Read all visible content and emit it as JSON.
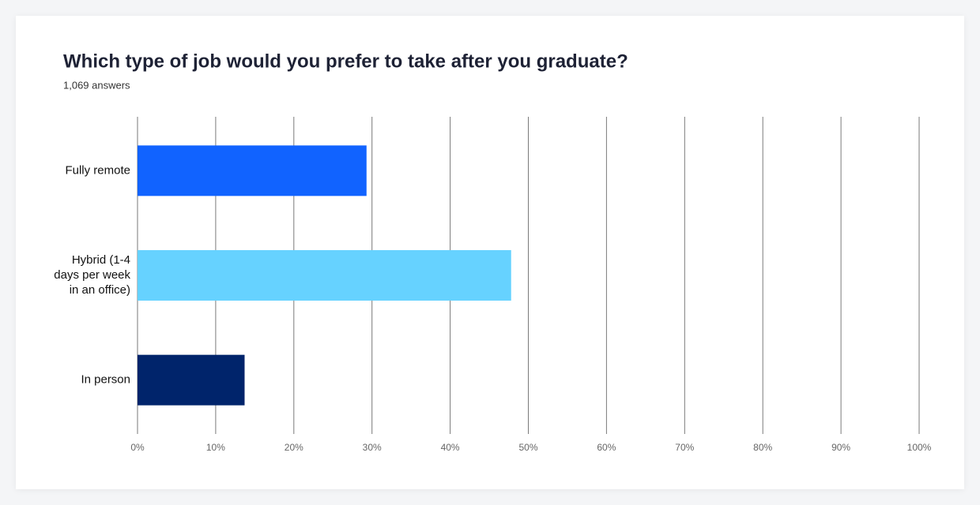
{
  "chart_data": {
    "type": "bar",
    "orientation": "horizontal",
    "title": "Which type of job would you prefer to take after you graduate?",
    "subtitle": "1,069 answers",
    "categories": [
      "Fully remote",
      "Hybrid (1-4 days per week in an office)",
      "In person"
    ],
    "values": [
      29.3,
      47.8,
      13.7
    ],
    "colors": [
      "#1163ff",
      "#66d2ff",
      "#00246b"
    ],
    "xlim": [
      0,
      100
    ],
    "xticks": [
      {
        "value": 0,
        "label": "0%"
      },
      {
        "value": 10,
        "label": "10%"
      },
      {
        "value": 20,
        "label": "20%"
      },
      {
        "value": 30,
        "label": "30%"
      },
      {
        "value": 40,
        "label": "40%"
      },
      {
        "value": 50,
        "label": "50%"
      },
      {
        "value": 60,
        "label": "60%"
      },
      {
        "value": 70,
        "label": "70%"
      },
      {
        "value": 80,
        "label": "80%"
      },
      {
        "value": 90,
        "label": "90%"
      },
      {
        "value": 100,
        "label": "100%"
      }
    ],
    "grid": true
  }
}
